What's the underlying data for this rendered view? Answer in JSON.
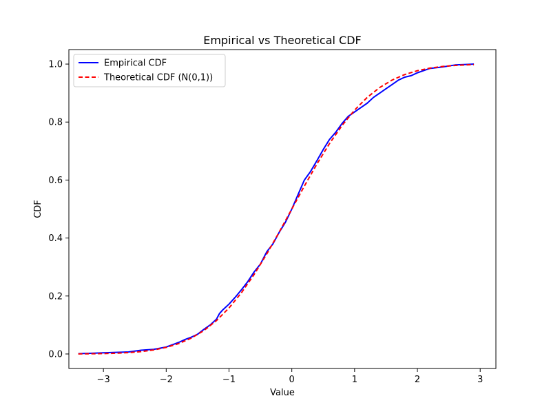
{
  "chart_data": {
    "type": "line",
    "title": "Empirical vs Theoretical CDF",
    "xlabel": "Value",
    "ylabel": "CDF",
    "xlim": [
      -3.55,
      3.25
    ],
    "ylim": [
      -0.05,
      1.05
    ],
    "xticks": [
      -3,
      -2,
      -1,
      0,
      1,
      2,
      3
    ],
    "xtick_labels": [
      "−3",
      "−2",
      "−1",
      "0",
      "1",
      "2",
      "3"
    ],
    "yticks": [
      0.0,
      0.2,
      0.4,
      0.6,
      0.8,
      1.0
    ],
    "ytick_labels": [
      "0.0",
      "0.2",
      "0.4",
      "0.6",
      "0.8",
      "1.0"
    ],
    "grid": false,
    "legend_position": "top-left",
    "series": [
      {
        "name": "Empirical CDF",
        "color": "#0000ff",
        "style": "solid",
        "x": [
          -3.4,
          -3.0,
          -2.6,
          -2.4,
          -2.2,
          -2.0,
          -1.8,
          -1.7,
          -1.6,
          -1.5,
          -1.4,
          -1.3,
          -1.2,
          -1.15,
          -1.1,
          -1.0,
          -0.9,
          -0.8,
          -0.7,
          -0.6,
          -0.5,
          -0.4,
          -0.3,
          -0.2,
          -0.1,
          0.0,
          0.1,
          0.2,
          0.3,
          0.4,
          0.5,
          0.6,
          0.7,
          0.8,
          0.9,
          1.0,
          1.1,
          1.2,
          1.3,
          1.4,
          1.5,
          1.6,
          1.7,
          1.8,
          1.9,
          2.0,
          2.2,
          2.4,
          2.6,
          2.8,
          2.9
        ],
        "y": [
          0.001,
          0.004,
          0.007,
          0.013,
          0.016,
          0.024,
          0.04,
          0.05,
          0.058,
          0.068,
          0.085,
          0.1,
          0.12,
          0.14,
          0.152,
          0.172,
          0.196,
          0.222,
          0.25,
          0.283,
          0.31,
          0.352,
          0.38,
          0.42,
          0.455,
          0.5,
          0.55,
          0.6,
          0.63,
          0.667,
          0.705,
          0.74,
          0.765,
          0.795,
          0.82,
          0.835,
          0.85,
          0.865,
          0.885,
          0.9,
          0.915,
          0.93,
          0.945,
          0.955,
          0.96,
          0.97,
          0.985,
          0.99,
          0.997,
          0.999,
          1.0
        ]
      },
      {
        "name": "Theoretical CDF (N(0,1))",
        "color": "#ff0000",
        "style": "dashed",
        "x": [
          -3.4,
          -3.2,
          -3.0,
          -2.8,
          -2.6,
          -2.4,
          -2.2,
          -2.0,
          -1.8,
          -1.6,
          -1.4,
          -1.2,
          -1.0,
          -0.8,
          -0.6,
          -0.4,
          -0.2,
          0.0,
          0.2,
          0.4,
          0.6,
          0.8,
          1.0,
          1.2,
          1.4,
          1.6,
          1.8,
          2.0,
          2.2,
          2.4,
          2.6,
          2.8,
          2.9
        ],
        "y": [
          0.0003,
          0.0007,
          0.0013,
          0.0026,
          0.0047,
          0.0082,
          0.0139,
          0.0228,
          0.0359,
          0.0548,
          0.0808,
          0.1151,
          0.1587,
          0.2119,
          0.2743,
          0.3446,
          0.4207,
          0.5,
          0.5793,
          0.6554,
          0.7257,
          0.7881,
          0.8413,
          0.8849,
          0.9192,
          0.9452,
          0.9641,
          0.9772,
          0.9861,
          0.9918,
          0.9953,
          0.9974,
          0.9981
        ]
      }
    ]
  }
}
